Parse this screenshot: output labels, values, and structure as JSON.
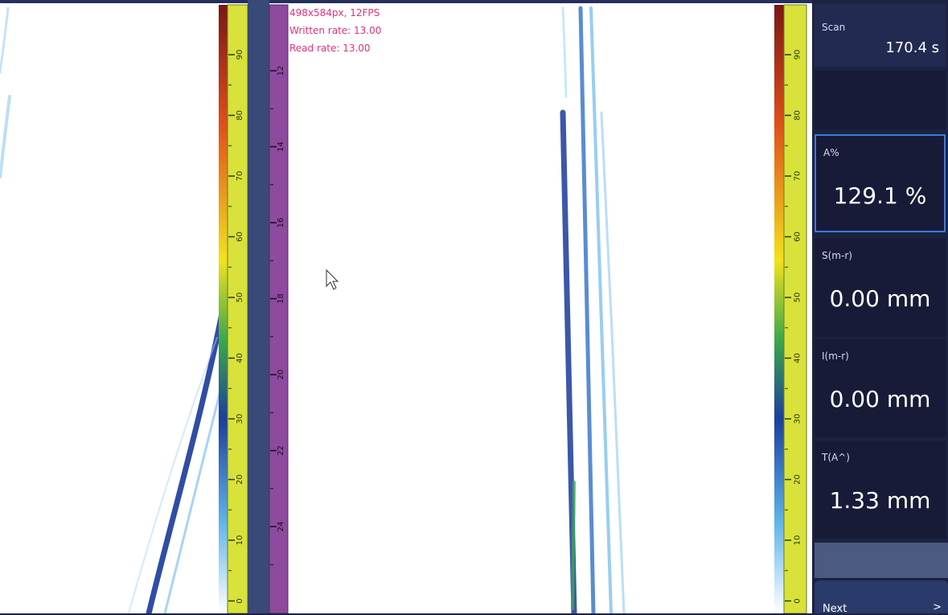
{
  "overlay": {
    "resolution": "498x584px, 12FPS",
    "written_rate": "Written rate: 13.00",
    "read_rate": "Read rate: 13.00"
  },
  "rulers": {
    "amplitude_left": [
      90,
      80,
      70,
      60,
      50,
      40,
      30,
      20,
      10,
      0
    ],
    "depth": [
      12,
      14,
      16,
      18,
      20,
      22,
      24
    ],
    "amplitude_right": [
      90,
      80,
      70,
      60,
      50,
      40,
      30,
      20,
      10,
      0
    ]
  },
  "panel": {
    "scan": {
      "label": "Scan",
      "value": "170.4 s"
    },
    "readings": [
      {
        "label": "A%",
        "value": "129.1 %"
      },
      {
        "label": "S(m-r)",
        "value": "0.00 mm"
      },
      {
        "label": "I(m-r)",
        "value": "0.00 mm"
      },
      {
        "label": "T(A^)",
        "value": "1.33 mm"
      }
    ],
    "next": {
      "label": "Next",
      "icon": ">"
    }
  }
}
